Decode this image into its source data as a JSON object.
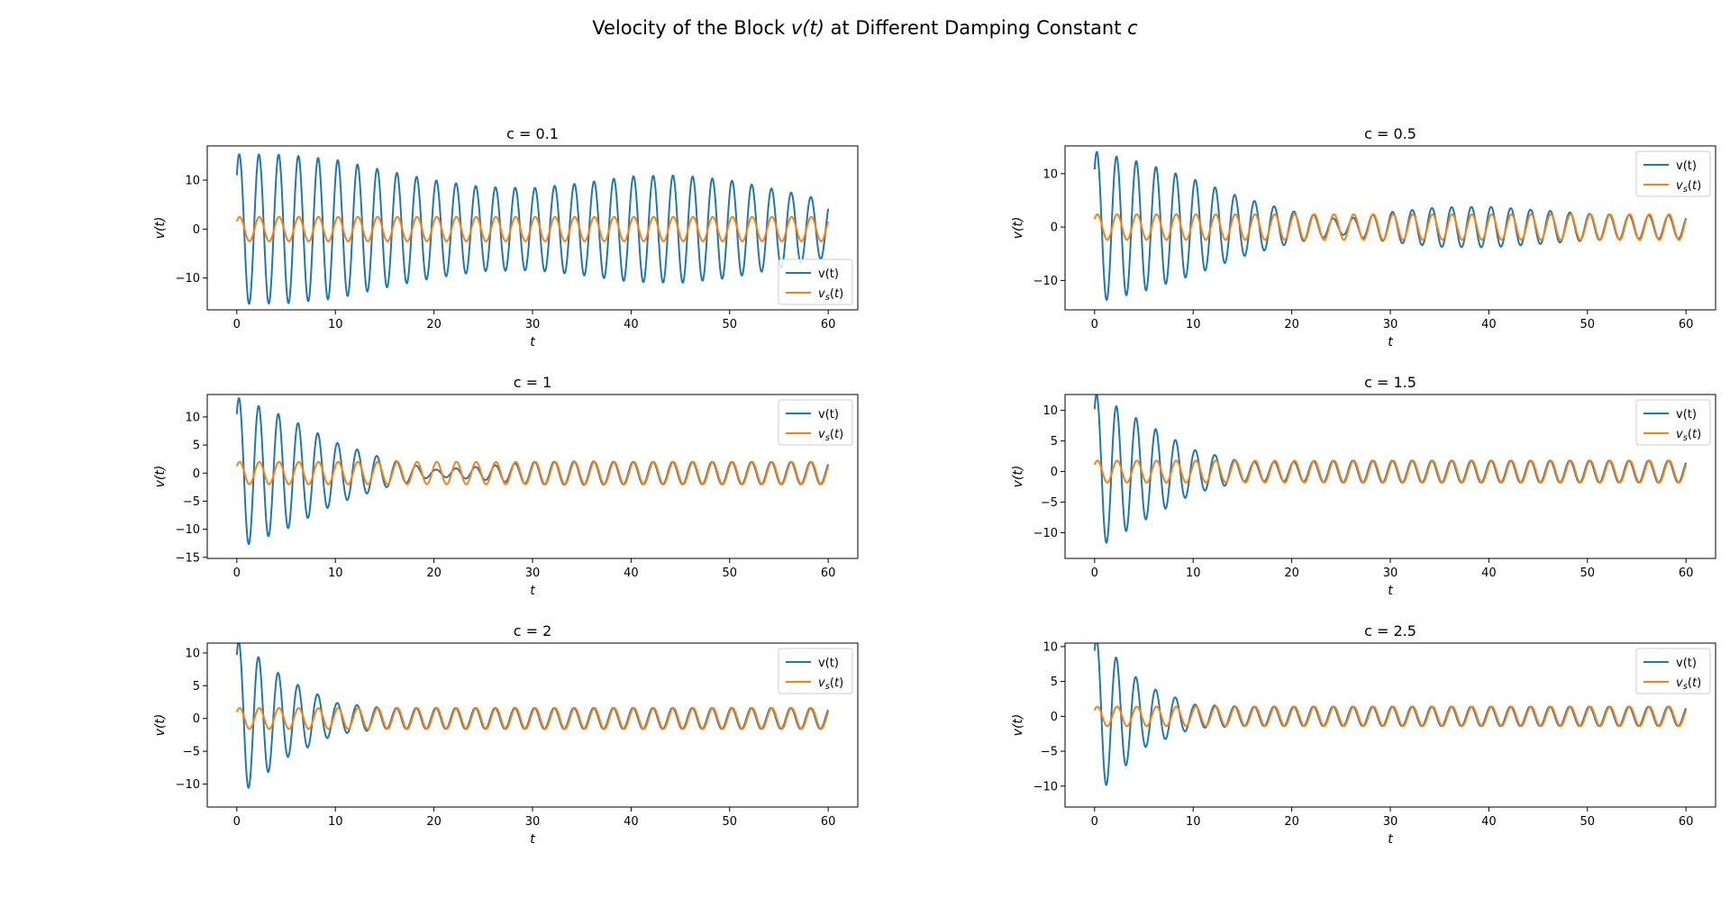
{
  "figure": {
    "title_prefix": "Velocity of the Block ",
    "title_math": "v(t)",
    "title_middle": " at Different Damping Constant ",
    "title_var": "c"
  },
  "colors": {
    "v": "#1f77b4",
    "vs": "#ff7f0e"
  },
  "chart_data": [
    {
      "type": "line",
      "title": "c = 0.1",
      "c": 0.1,
      "xlabel": "t",
      "ylabel": "v(t)",
      "xlim": [
        -3,
        63
      ],
      "ylim": [
        -16.5,
        17
      ],
      "xticks": [
        0,
        10,
        20,
        30,
        40,
        50,
        60
      ],
      "yticks": [
        -10,
        0,
        10
      ],
      "legend_position": "lower-right",
      "series": [
        {
          "name": "v(t)",
          "key": "v",
          "x_range": [
            0,
            60
          ],
          "v0": 11,
          "peak_envelope": [
            [
              0,
              15.3
            ],
            [
              5,
              15.2
            ],
            [
              10,
              14.2
            ],
            [
              15,
              12.0
            ],
            [
              20,
              10.0
            ],
            [
              25,
              8.6
            ],
            [
              30,
              8.4
            ],
            [
              35,
              9.4
            ],
            [
              40,
              10.8
            ],
            [
              45,
              11.0
            ],
            [
              50,
              10.0
            ],
            [
              55,
              8.0
            ],
            [
              60,
              5.8
            ]
          ]
        },
        {
          "name": "v_s(t)",
          "key": "vs",
          "x_range": [
            0,
            60
          ],
          "amplitude": 2.5
        }
      ]
    },
    {
      "type": "line",
      "title": "c = 0.5",
      "c": 0.5,
      "xlabel": "t",
      "ylabel": "v(t)",
      "xlim": [
        -3,
        63
      ],
      "ylim": [
        -15.5,
        15.2
      ],
      "xticks": [
        0,
        10,
        20,
        30,
        40,
        50,
        60
      ],
      "yticks": [
        -10,
        0,
        10
      ],
      "legend_position": "upper-right",
      "series": [
        {
          "name": "v(t)",
          "key": "v",
          "x_range": [
            0,
            60
          ],
          "v0": 10.8,
          "peak_envelope": [
            [
              0,
              14.2
            ],
            [
              5,
              12.0
            ],
            [
              10,
              9.0
            ],
            [
              15,
              5.5
            ],
            [
              20,
              3.0
            ],
            [
              25,
              1.4
            ],
            [
              30,
              2.8
            ],
            [
              35,
              3.7
            ],
            [
              40,
              3.8
            ],
            [
              45,
              3.2
            ],
            [
              50,
              2.5
            ],
            [
              55,
              2.2
            ],
            [
              60,
              2.2
            ]
          ]
        },
        {
          "name": "v_s(t)",
          "key": "vs",
          "x_range": [
            0,
            60
          ],
          "amplitude": 2.4
        }
      ]
    },
    {
      "type": "line",
      "title": "c = 1",
      "c": 1,
      "xlabel": "t",
      "ylabel": "v(t)",
      "xlim": [
        -3,
        63
      ],
      "ylim": [
        -15.2,
        14
      ],
      "xticks": [
        0,
        10,
        20,
        30,
        40,
        50,
        60
      ],
      "yticks": [
        -15,
        -10,
        -5,
        0,
        5,
        10
      ],
      "legend_position": "upper-right",
      "series": [
        {
          "name": "v(t)",
          "key": "v",
          "x_range": [
            0,
            60
          ],
          "v0": 10.5,
          "peak_envelope": [
            [
              0,
              13.5
            ],
            [
              5,
              10.0
            ],
            [
              10,
              5.5
            ],
            [
              15,
              2.6
            ],
            [
              20,
              0.6
            ],
            [
              25,
              1.2
            ],
            [
              30,
              2.0
            ],
            [
              35,
              2.1
            ],
            [
              40,
              2.0
            ],
            [
              45,
              2.0
            ],
            [
              50,
              2.0
            ],
            [
              55,
              2.0
            ],
            [
              60,
              2.0
            ]
          ]
        },
        {
          "name": "v_s(t)",
          "key": "vs",
          "x_range": [
            0,
            60
          ],
          "amplitude": 2.0
        }
      ]
    },
    {
      "type": "line",
      "title": "c = 1.5",
      "c": 1.5,
      "xlabel": "t",
      "ylabel": "v(t)",
      "xlim": [
        -3,
        63
      ],
      "ylim": [
        -14.2,
        12.6
      ],
      "xticks": [
        0,
        10,
        20,
        30,
        40,
        50,
        60
      ],
      "yticks": [
        -10,
        -5,
        0,
        5,
        10
      ],
      "legend_position": "upper-right",
      "series": [
        {
          "name": "v(t)",
          "key": "v",
          "x_range": [
            0,
            60
          ],
          "v0": 10.2,
          "peak_envelope": [
            [
              0,
              12.8
            ],
            [
              5,
              8.0
            ],
            [
              10,
              3.6
            ],
            [
              15,
              1.6
            ],
            [
              20,
              1.6
            ],
            [
              25,
              1.8
            ],
            [
              30,
              1.8
            ],
            [
              40,
              1.8
            ],
            [
              50,
              1.8
            ],
            [
              60,
              1.8
            ]
          ]
        },
        {
          "name": "v_s(t)",
          "key": "vs",
          "x_range": [
            0,
            60
          ],
          "amplitude": 1.8
        }
      ]
    },
    {
      "type": "line",
      "title": "c = 2",
      "c": 2,
      "xlabel": "t",
      "ylabel": "v(t)",
      "xlim": [
        -3,
        63
      ],
      "ylim": [
        -13.5,
        11.5
      ],
      "xticks": [
        0,
        10,
        20,
        30,
        40,
        50,
        60
      ],
      "yticks": [
        -10,
        -5,
        0,
        5,
        10
      ],
      "legend_position": "upper-right",
      "series": [
        {
          "name": "v(t)",
          "key": "v",
          "x_range": [
            0,
            60
          ],
          "v0": 9.7,
          "peak_envelope": [
            [
              0,
              12.0
            ],
            [
              5,
              6.0
            ],
            [
              10,
              2.4
            ],
            [
              15,
              1.6
            ],
            [
              20,
              1.6
            ],
            [
              30,
              1.6
            ],
            [
              40,
              1.6
            ],
            [
              50,
              1.6
            ],
            [
              60,
              1.6
            ]
          ]
        },
        {
          "name": "v_s(t)",
          "key": "vs",
          "x_range": [
            0,
            60
          ],
          "amplitude": 1.6
        }
      ]
    },
    {
      "type": "line",
      "title": "c = 2.5",
      "c": 2.5,
      "xlabel": "t",
      "ylabel": "v(t)",
      "xlim": [
        -3,
        63
      ],
      "ylim": [
        -13,
        10.5
      ],
      "xticks": [
        0,
        10,
        20,
        30,
        40,
        50,
        60
      ],
      "yticks": [
        -10,
        -5,
        0,
        5,
        10
      ],
      "legend_position": "upper-right",
      "series": [
        {
          "name": "v(t)",
          "key": "v",
          "x_range": [
            0,
            60
          ],
          "v0": 9.4,
          "peak_envelope": [
            [
              0,
              11.5
            ],
            [
              5,
              4.5
            ],
            [
              10,
              1.7
            ],
            [
              15,
              1.4
            ],
            [
              20,
              1.4
            ],
            [
              30,
              1.4
            ],
            [
              40,
              1.4
            ],
            [
              50,
              1.4
            ],
            [
              60,
              1.4
            ]
          ]
        },
        {
          "name": "v_s(t)",
          "key": "vs",
          "x_range": [
            0,
            60
          ],
          "amplitude": 1.4
        }
      ]
    }
  ]
}
